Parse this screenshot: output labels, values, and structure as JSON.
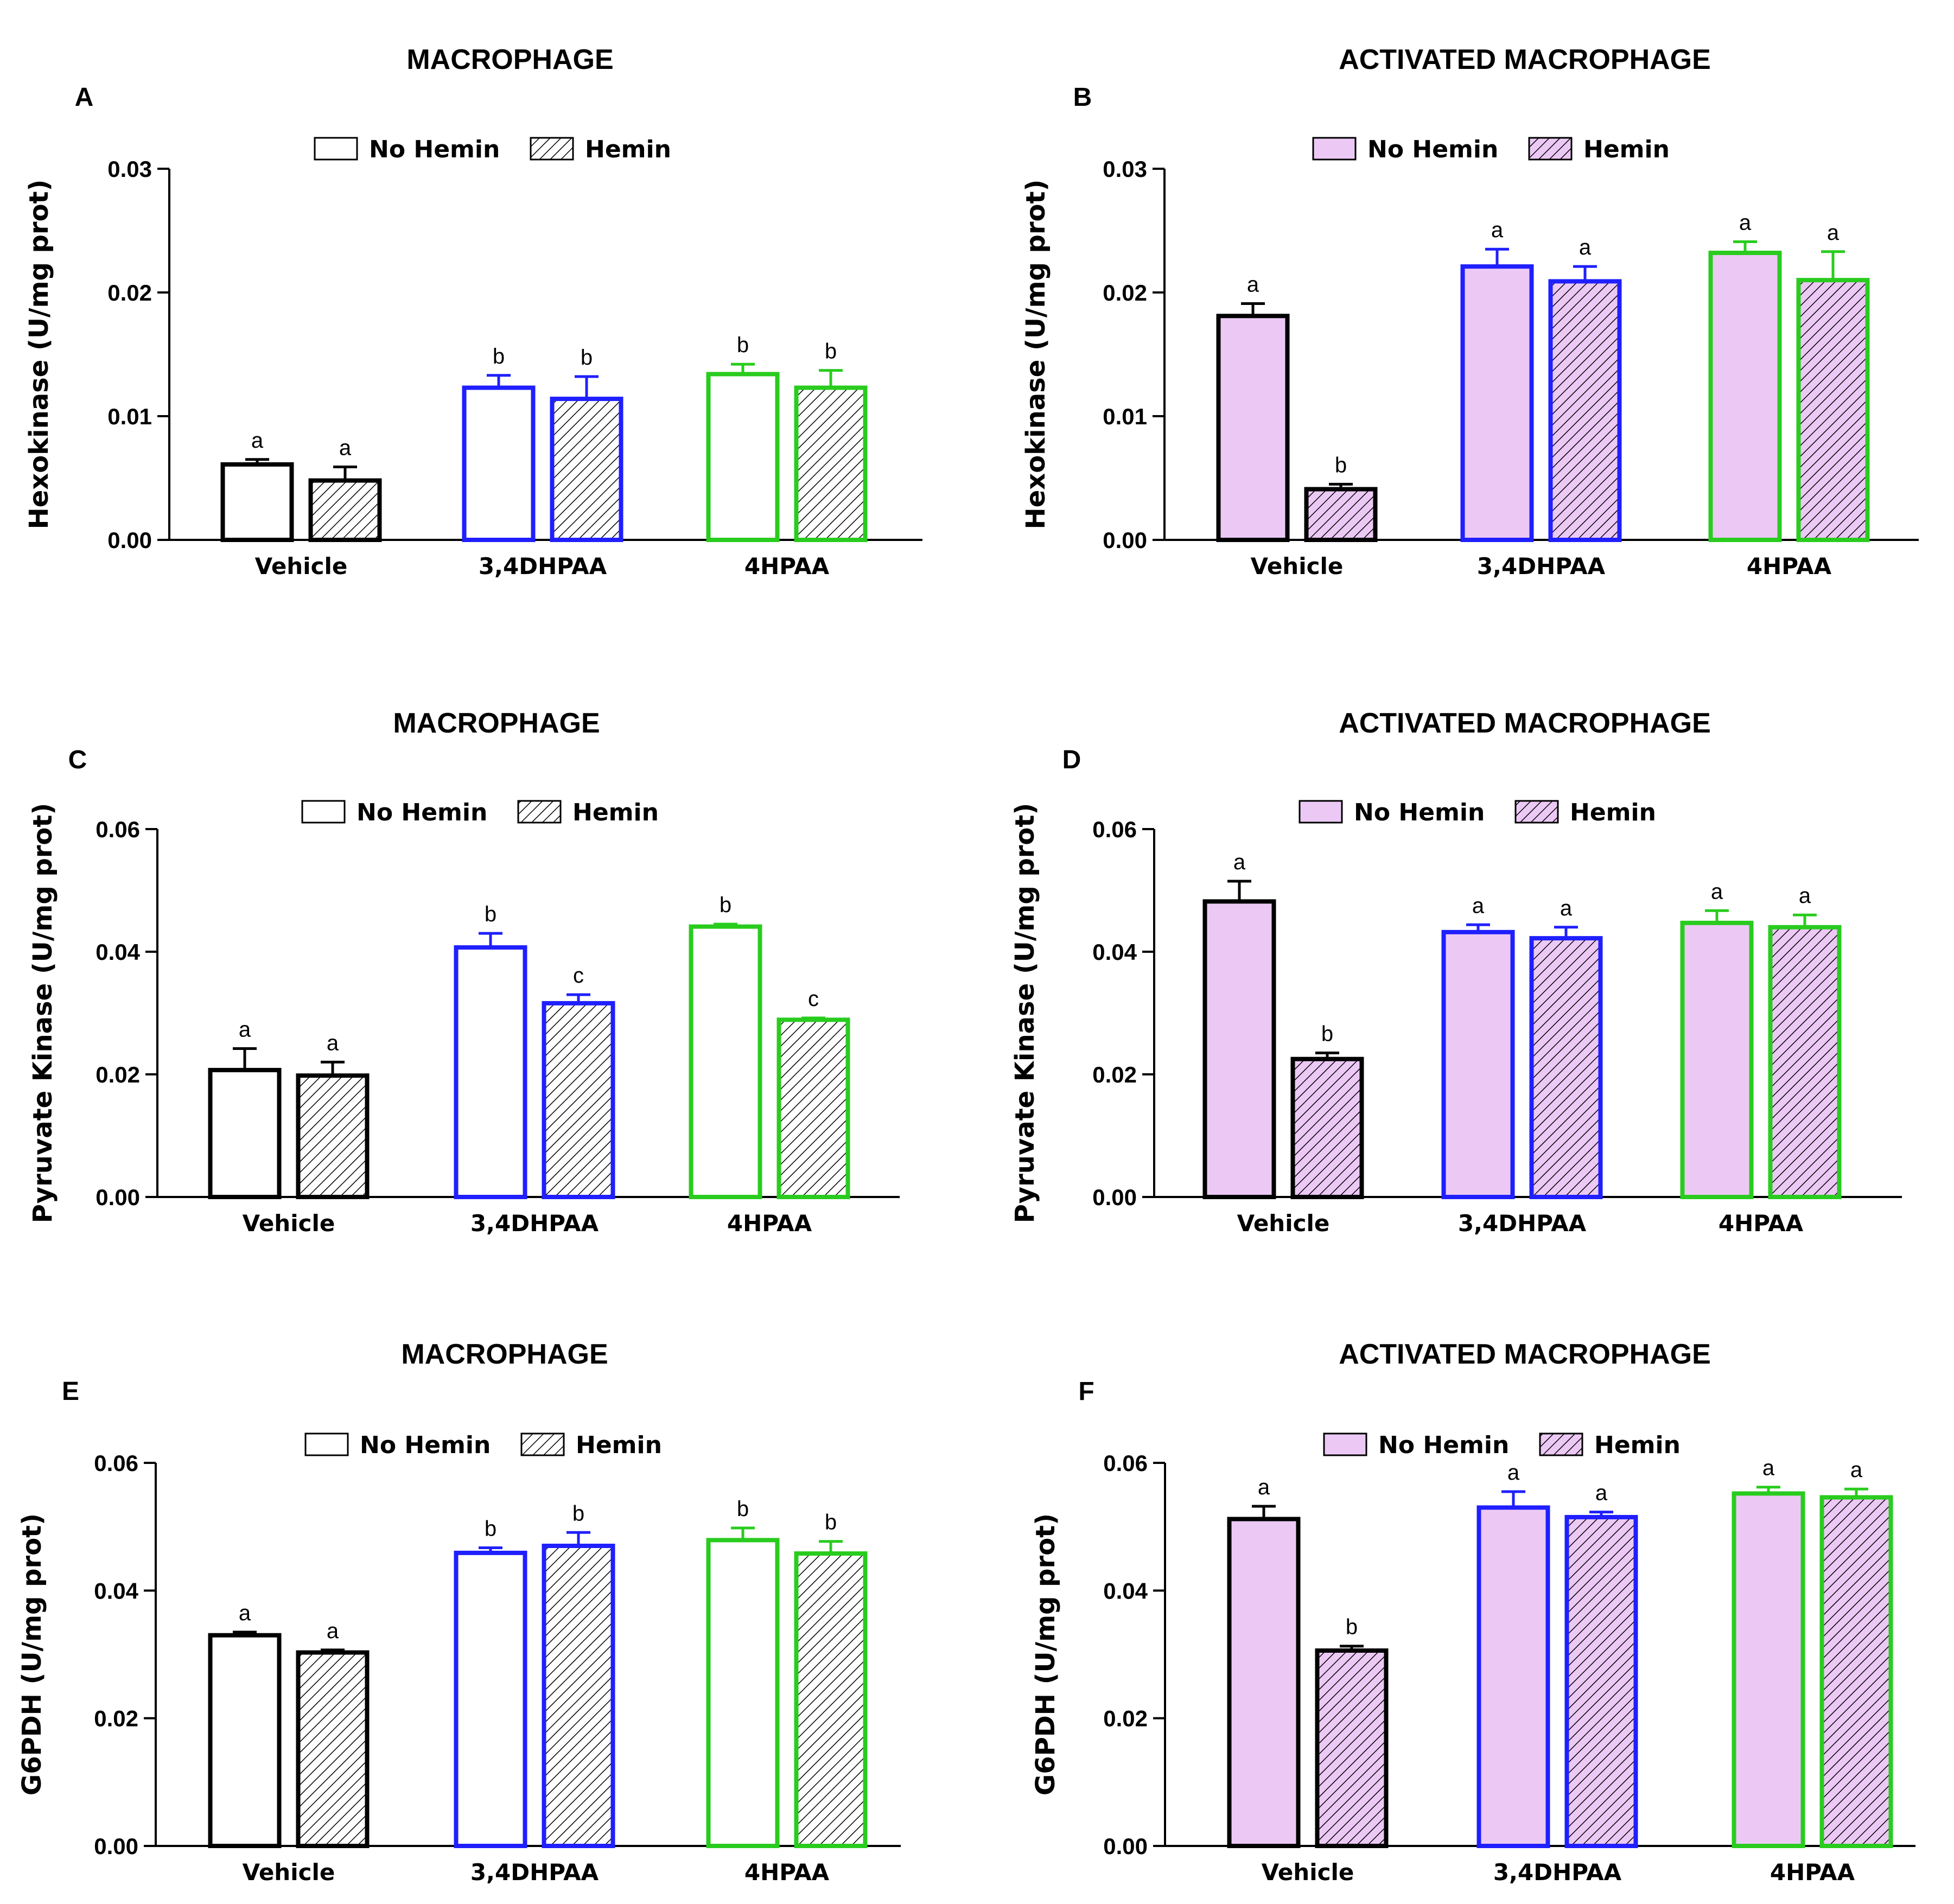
{
  "colors": {
    "vehicle": "#000000",
    "dhpaa": "#1f1fff",
    "hpaa": "#29cc1e",
    "activated_fill": "#ecc9f5",
    "plain_fill": "#ffffff",
    "hatch": "#000000"
  },
  "legend": {
    "no_hemin": "No Hemin",
    "hemin": "Hemin"
  },
  "chart_data": [
    {
      "id": "A",
      "type": "bar",
      "title": "MACROPHAGE",
      "ylabel": "Hexokinase (U/mg prot)",
      "ylim": [
        0,
        0.03
      ],
      "yticks": [
        0,
        0.01,
        0.02,
        0.03
      ],
      "ytick_labels": [
        "0.00",
        "0.01",
        "0.02",
        "0.03"
      ],
      "activated": false,
      "categories": [
        "Vehicle",
        "3,4DHPAA",
        "4HPAA"
      ],
      "series": [
        {
          "name": "No Hemin",
          "values": [
            0.0061,
            0.0123,
            0.0134
          ],
          "errors": [
            0.0004,
            0.001,
            0.0008
          ],
          "letters": [
            "a",
            "b",
            "b"
          ]
        },
        {
          "name": "Hemin",
          "values": [
            0.0048,
            0.0114,
            0.0123
          ],
          "errors": [
            0.0011,
            0.0018,
            0.0014
          ],
          "letters": [
            "a",
            "b",
            "b"
          ]
        }
      ]
    },
    {
      "id": "B",
      "type": "bar",
      "title": "ACTIVATED MACROPHAGE",
      "ylabel": "Hexokinase (U/mg prot)",
      "ylim": [
        0,
        0.03
      ],
      "yticks": [
        0,
        0.01,
        0.02,
        0.03
      ],
      "ytick_labels": [
        "0.00",
        "0.01",
        "0.02",
        "0.03"
      ],
      "activated": true,
      "categories": [
        "Vehicle",
        "3,4DHPAA",
        "4HPAA"
      ],
      "series": [
        {
          "name": "No Hemin",
          "values": [
            0.0181,
            0.0221,
            0.0232
          ],
          "errors": [
            0.001,
            0.0014,
            0.0009
          ],
          "letters": [
            "a",
            "a",
            "a"
          ]
        },
        {
          "name": "Hemin",
          "values": [
            0.0041,
            0.0209,
            0.021
          ],
          "errors": [
            0.0004,
            0.0012,
            0.0023
          ],
          "letters": [
            "b",
            "a",
            "a"
          ]
        }
      ]
    },
    {
      "id": "C",
      "type": "bar",
      "title": "MACROPHAGE",
      "ylabel": "Pyruvate Kinase (U/mg prot)",
      "ylim": [
        0,
        0.06
      ],
      "yticks": [
        0,
        0.02,
        0.04,
        0.06
      ],
      "ytick_labels": [
        "0.00",
        "0.02",
        "0.04",
        "0.06"
      ],
      "activated": false,
      "categories": [
        "Vehicle",
        "3,4DHPAA",
        "4HPAA"
      ],
      "series": [
        {
          "name": "No Hemin",
          "values": [
            0.0207,
            0.0407,
            0.0441
          ],
          "errors": [
            0.0035,
            0.0023,
            0.0004
          ],
          "letters": [
            "a",
            "b",
            "b"
          ]
        },
        {
          "name": "Hemin",
          "values": [
            0.0198,
            0.0316,
            0.0289
          ],
          "errors": [
            0.0022,
            0.0014,
            0.0003
          ],
          "letters": [
            "a",
            "c",
            "c"
          ]
        }
      ]
    },
    {
      "id": "D",
      "type": "bar",
      "title": "ACTIVATED MACROPHAGE",
      "ylabel": "Pyruvate Kinase (U/mg prot)",
      "ylim": [
        0,
        0.06
      ],
      "yticks": [
        0,
        0.02,
        0.04,
        0.06
      ],
      "ytick_labels": [
        "0.00",
        "0.02",
        "0.04",
        "0.06"
      ],
      "activated": true,
      "categories": [
        "Vehicle",
        "3,4DHPAA",
        "4HPAA"
      ],
      "series": [
        {
          "name": "No Hemin",
          "values": [
            0.0482,
            0.0432,
            0.0447
          ],
          "errors": [
            0.0033,
            0.0012,
            0.002
          ],
          "letters": [
            "a",
            "a",
            "a"
          ]
        },
        {
          "name": "Hemin",
          "values": [
            0.0225,
            0.0422,
            0.044
          ],
          "errors": [
            0.001,
            0.0018,
            0.002
          ],
          "letters": [
            "b",
            "a",
            "a"
          ]
        }
      ]
    },
    {
      "id": "E",
      "type": "bar",
      "title": "MACROPHAGE",
      "ylabel": "G6PDH (U/mg prot)",
      "ylim": [
        0,
        0.06
      ],
      "yticks": [
        0,
        0.02,
        0.04,
        0.06
      ],
      "ytick_labels": [
        "0.00",
        "0.02",
        "0.04",
        "0.06"
      ],
      "activated": false,
      "categories": [
        "Vehicle",
        "3,4DHPAA",
        "4HPAA"
      ],
      "series": [
        {
          "name": "No Hemin",
          "values": [
            0.033,
            0.0459,
            0.0479
          ],
          "errors": [
            0.0005,
            0.0008,
            0.0019
          ],
          "letters": [
            "a",
            "b",
            "b"
          ]
        },
        {
          "name": "Hemin",
          "values": [
            0.0303,
            0.047,
            0.0458
          ],
          "errors": [
            0.0004,
            0.0021,
            0.0019
          ],
          "letters": [
            "a",
            "b",
            "b"
          ]
        }
      ]
    },
    {
      "id": "F",
      "type": "bar",
      "title": "ACTIVATED MACROPHAGE",
      "ylabel": "G6PDH (U/mg prot)",
      "ylim": [
        0,
        0.06
      ],
      "yticks": [
        0,
        0.02,
        0.04,
        0.06
      ],
      "ytick_labels": [
        "0.00",
        "0.02",
        "0.04",
        "0.06"
      ],
      "activated": true,
      "categories": [
        "Vehicle",
        "3,4DHPAA",
        "4HPAA"
      ],
      "series": [
        {
          "name": "No Hemin",
          "values": [
            0.0512,
            0.053,
            0.0552
          ],
          "errors": [
            0.002,
            0.0025,
            0.001
          ],
          "letters": [
            "a",
            "a",
            "a"
          ]
        },
        {
          "name": "Hemin",
          "values": [
            0.0306,
            0.0515,
            0.0546
          ],
          "errors": [
            0.0007,
            0.0008,
            0.0013
          ],
          "letters": [
            "b",
            "a",
            "a"
          ]
        }
      ]
    }
  ]
}
